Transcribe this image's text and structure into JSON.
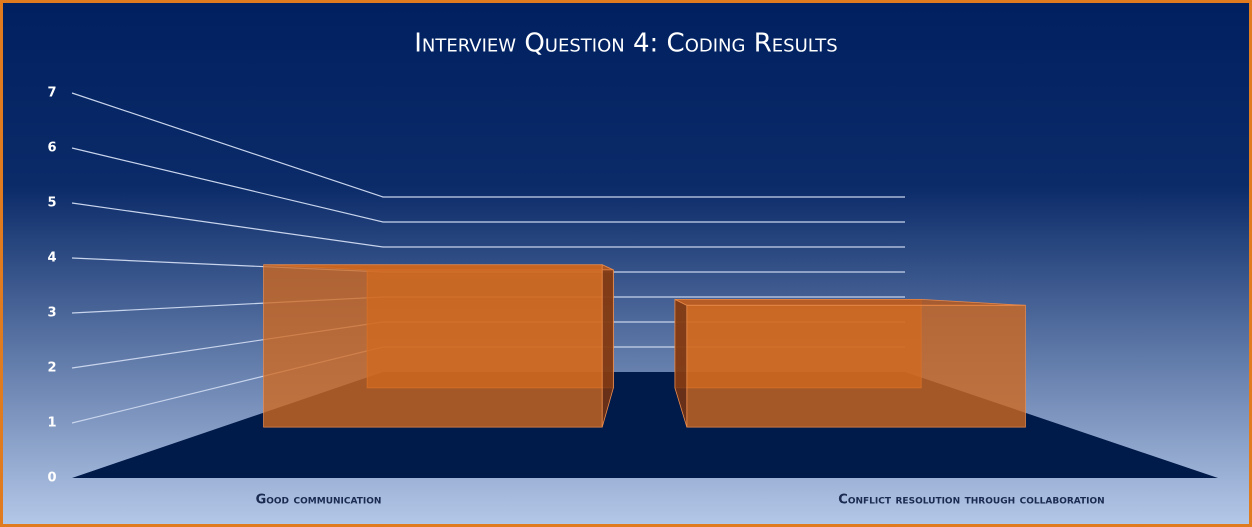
{
  "chart_data": {
    "type": "bar3d",
    "title": "Interview Question 4: Coding Results",
    "categories": [
      "Good communication",
      "Conflict resolution through collaboration"
    ],
    "values": [
      4,
      3
    ],
    "color": "#d2691e",
    "ylim": [
      0,
      7
    ],
    "yticks": [
      0,
      1,
      2,
      3,
      4,
      5,
      6,
      7
    ],
    "grid": true
  }
}
